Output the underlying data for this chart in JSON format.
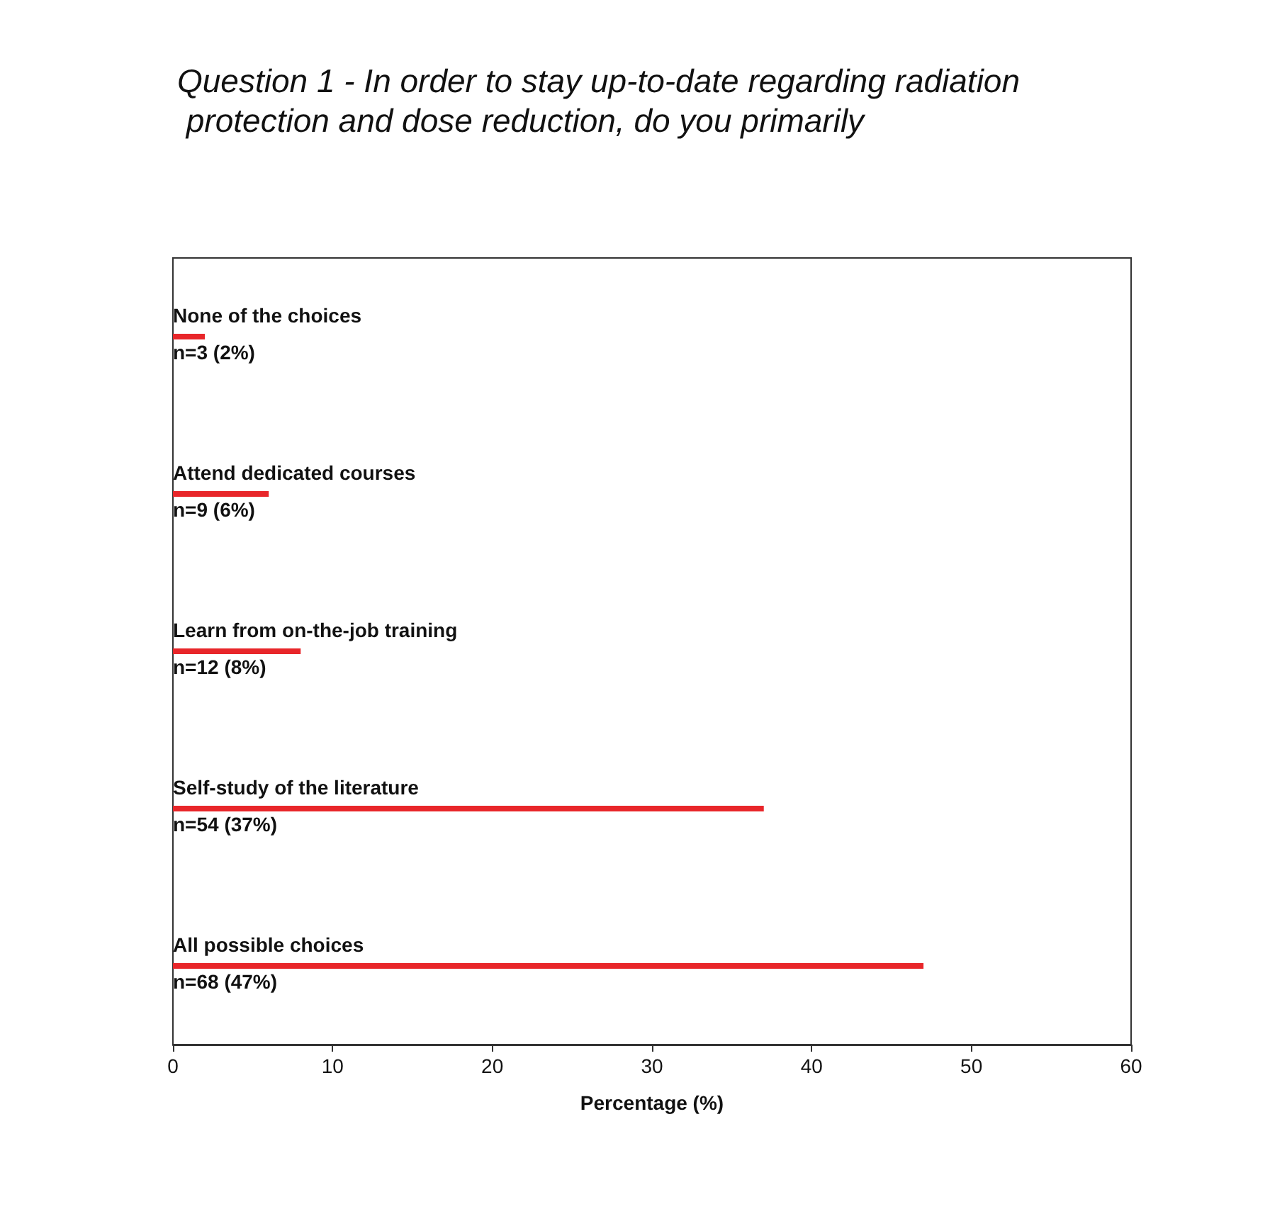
{
  "chart_data": {
    "type": "bar",
    "orientation": "horizontal",
    "title": "Question 1 - In order to stay up-to-date regarding radiation protection and dose reduction, do you primarily",
    "categories": [
      "None of the choices",
      "Attend dedicated courses",
      "Learn from on-the-job training",
      "Self-study of the literature",
      "All possible choices"
    ],
    "values": [
      2,
      6,
      8,
      37,
      47
    ],
    "value_labels": [
      "n=3 (2%)",
      "n=9 (6%)",
      "n=12 (8%)",
      "n=54 (37%)",
      "n=68 (47%)"
    ],
    "color": "#e8262a",
    "xlabel": "Percentage (%)",
    "xlim": [
      0,
      60
    ],
    "xticks": [
      0,
      10,
      20,
      30,
      40,
      50,
      60
    ],
    "grid": false
  }
}
